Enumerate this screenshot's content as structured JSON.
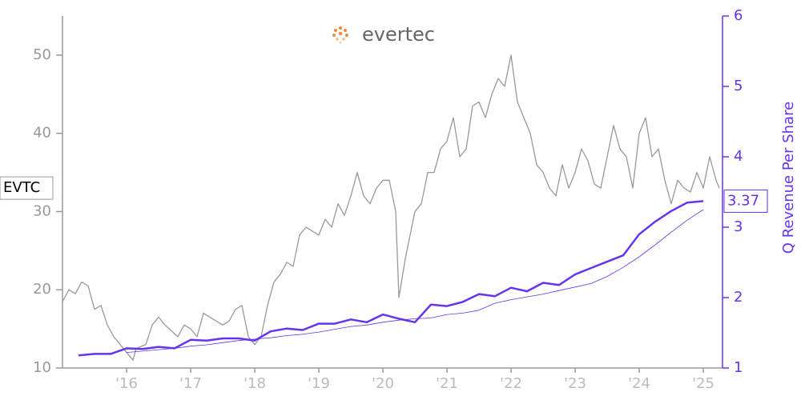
{
  "chart_data": {
    "type": "line",
    "logo": "evertec",
    "y2label": "Q Revenue Per Share",
    "xlim": [
      2015.0,
      2025.3
    ],
    "xticks": [
      {
        "value": 2016,
        "label": "'16"
      },
      {
        "value": 2017,
        "label": "'17"
      },
      {
        "value": 2018,
        "label": "'18"
      },
      {
        "value": 2019,
        "label": "'19"
      },
      {
        "value": 2020,
        "label": "'20"
      },
      {
        "value": 2021,
        "label": "'21"
      },
      {
        "value": 2022,
        "label": "'22"
      },
      {
        "value": 2023,
        "label": "'23"
      },
      {
        "value": 2024,
        "label": "'24"
      },
      {
        "value": 2025,
        "label": "'25"
      }
    ],
    "ylim": [
      10,
      55
    ],
    "yticks": [
      10,
      20,
      30,
      40,
      50
    ],
    "y2lim": [
      1,
      6
    ],
    "y2ticks": [
      1,
      2,
      3,
      4,
      5,
      6
    ],
    "series": [
      {
        "name": "EVTC",
        "color": "#999999",
        "x": [
          2015.0,
          2015.1,
          2015.2,
          2015.3,
          2015.4,
          2015.5,
          2015.6,
          2015.7,
          2015.8,
          2015.9,
          2016.0,
          2016.1,
          2016.15,
          2016.3,
          2016.4,
          2016.5,
          2016.6,
          2016.8,
          2016.9,
          2017.0,
          2017.1,
          2017.2,
          2017.3,
          2017.5,
          2017.6,
          2017.7,
          2017.8,
          2017.9,
          2018.0,
          2018.1,
          2018.2,
          2018.3,
          2018.4,
          2018.5,
          2018.6,
          2018.7,
          2018.8,
          2018.9,
          2019.0,
          2019.1,
          2019.2,
          2019.3,
          2019.4,
          2019.5,
          2019.6,
          2019.7,
          2019.8,
          2019.9,
          2020.0,
          2020.1,
          2020.2,
          2020.25,
          2020.35,
          2020.5,
          2020.6,
          2020.7,
          2020.8,
          2020.9,
          2021.0,
          2021.1,
          2021.2,
          2021.3,
          2021.4,
          2021.5,
          2021.6,
          2021.7,
          2021.8,
          2021.9,
          2022.0,
          2022.1,
          2022.2,
          2022.3,
          2022.4,
          2022.5,
          2022.6,
          2022.7,
          2022.8,
          2022.9,
          2023.0,
          2023.1,
          2023.2,
          2023.3,
          2023.4,
          2023.5,
          2023.6,
          2023.7,
          2023.8,
          2023.9,
          2024.0,
          2024.1,
          2024.2,
          2024.3,
          2024.4,
          2024.5,
          2024.6,
          2024.7,
          2024.8,
          2024.9,
          2025.0,
          2025.1,
          2025.2,
          2025.25
        ],
        "values": [
          18.5,
          20,
          19.5,
          21,
          20.5,
          17.5,
          18,
          15.5,
          14,
          13,
          12,
          11,
          12.5,
          13,
          15.5,
          16.5,
          15.5,
          14,
          15.5,
          15,
          14,
          17,
          16.5,
          15.5,
          16,
          17.5,
          18,
          14,
          13,
          14,
          18,
          21,
          22,
          23.5,
          23,
          27,
          28,
          27.5,
          27,
          29,
          28,
          31,
          29.5,
          32,
          35,
          32,
          31,
          33,
          34,
          34,
          30,
          19,
          24,
          30,
          31,
          35,
          35,
          38,
          39,
          42,
          37,
          38,
          43.5,
          44,
          42,
          45,
          47,
          46,
          50,
          44,
          42,
          40,
          36,
          35,
          33,
          32,
          36,
          33,
          35,
          38,
          36.5,
          33.5,
          33,
          37,
          41,
          38,
          37,
          33,
          40,
          42,
          37,
          38,
          34,
          31,
          34,
          33,
          32.5,
          35,
          33,
          37,
          34,
          33
        ]
      },
      {
        "color": "#6633ee",
        "axis": "y2",
        "x": [
          2015.25,
          2015.5,
          2015.75,
          2016.0,
          2016.25,
          2016.5,
          2016.75,
          2017.0,
          2017.25,
          2017.5,
          2017.75,
          2018.0,
          2018.25,
          2018.5,
          2018.75,
          2019.0,
          2019.25,
          2019.5,
          2019.75,
          2020.0,
          2020.25,
          2020.5,
          2020.75,
          2021.0,
          2021.25,
          2021.5,
          2021.75,
          2022.0,
          2022.25,
          2022.5,
          2022.75,
          2023.0,
          2023.25,
          2023.5,
          2023.75,
          2024.0,
          2024.25,
          2024.5,
          2024.75,
          2025.0
        ],
        "values": [
          1.18,
          1.2,
          1.2,
          1.28,
          1.27,
          1.3,
          1.28,
          1.4,
          1.39,
          1.42,
          1.42,
          1.39,
          1.52,
          1.56,
          1.54,
          1.63,
          1.63,
          1.69,
          1.65,
          1.76,
          1.7,
          1.65,
          1.9,
          1.88,
          1.94,
          2.05,
          2.02,
          2.14,
          2.09,
          2.21,
          2.18,
          2.33,
          2.42,
          2.51,
          2.6,
          2.9,
          3.08,
          3.23,
          3.35,
          3.37
        ]
      },
      {
        "color": "#6633ee",
        "axis": "y2",
        "x": [
          2015.25,
          2015.5,
          2015.75,
          2016.0,
          2016.25,
          2016.5,
          2016.75,
          2017.0,
          2017.25,
          2017.5,
          2017.75,
          2018.0,
          2018.25,
          2018.5,
          2018.75,
          2019.0,
          2019.25,
          2019.5,
          2019.75,
          2020.0,
          2020.25,
          2020.5,
          2020.75,
          2021.0,
          2021.25,
          2021.5,
          2021.75,
          2022.0,
          2022.25,
          2022.5,
          2022.75,
          2023.0,
          2023.25,
          2023.5,
          2023.75,
          2024.0,
          2024.25,
          2024.5,
          2024.75,
          2025.0
        ],
        "values": [
          null,
          null,
          null,
          1.22,
          1.24,
          1.26,
          1.28,
          1.31,
          1.33,
          1.36,
          1.39,
          1.41,
          1.43,
          1.46,
          1.48,
          1.51,
          1.55,
          1.59,
          1.61,
          1.65,
          1.68,
          1.7,
          1.71,
          1.76,
          1.78,
          1.82,
          1.92,
          1.97,
          2.01,
          2.05,
          2.1,
          2.15,
          2.2,
          2.3,
          2.43,
          2.58,
          2.75,
          2.93,
          3.1,
          3.25
        ]
      }
    ]
  }
}
